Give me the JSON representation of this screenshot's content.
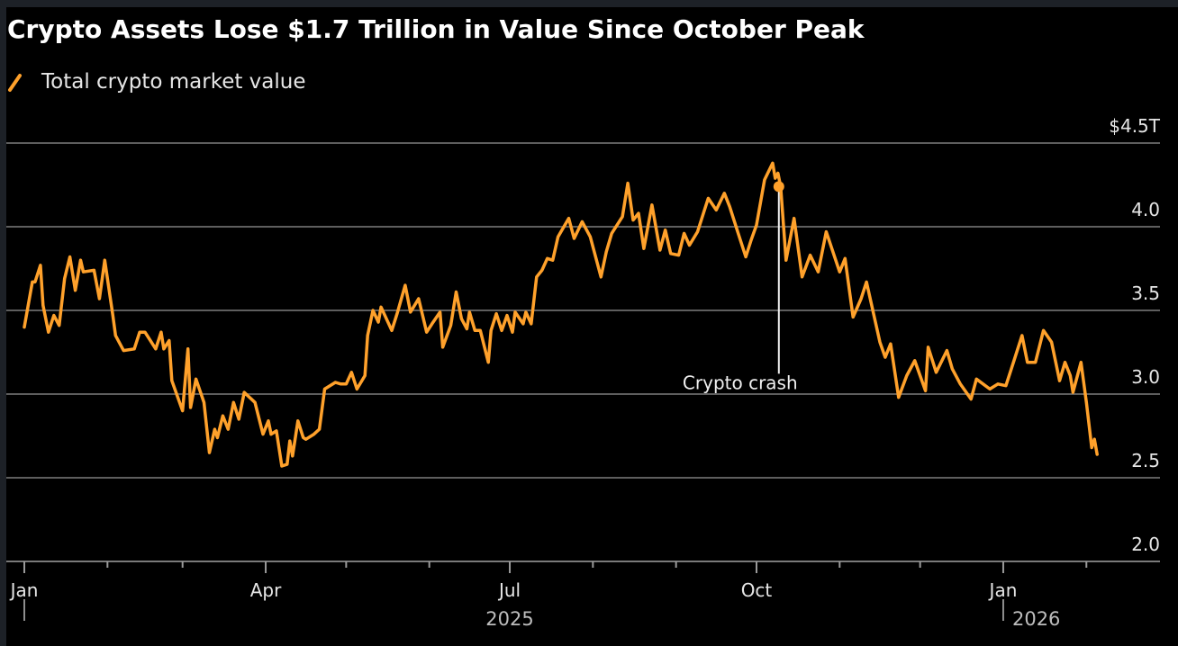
{
  "chart_data": {
    "type": "line",
    "title": "Crypto Assets Lose $1.7 Trillion in Value Since October Peak",
    "xlabel": "",
    "ylabel": "",
    "grid": true,
    "legend_placement": "top-left",
    "series_color": "#ffa12b",
    "ylim": [
      2.0,
      4.5
    ],
    "y_ticks": [
      {
        "value": 4.5,
        "label": "$4.5T"
      },
      {
        "value": 4.0,
        "label": "4.0"
      },
      {
        "value": 3.5,
        "label": "3.5"
      },
      {
        "value": 3.0,
        "label": "3.0"
      },
      {
        "value": 2.5,
        "label": "2.5"
      },
      {
        "value": 2.0,
        "label": "2.0"
      }
    ],
    "x_ticks": [
      {
        "date": "2025-01-01",
        "label": "Jan"
      },
      {
        "date": "2025-02-01",
        "label": ""
      },
      {
        "date": "2025-03-01",
        "label": ""
      },
      {
        "date": "2025-04-01",
        "label": "Apr"
      },
      {
        "date": "2025-05-01",
        "label": ""
      },
      {
        "date": "2025-06-01",
        "label": ""
      },
      {
        "date": "2025-07-01",
        "label": "Jul"
      },
      {
        "date": "2025-08-01",
        "label": ""
      },
      {
        "date": "2025-09-01",
        "label": ""
      },
      {
        "date": "2025-10-01",
        "label": "Oct"
      },
      {
        "date": "2025-11-01",
        "label": ""
      },
      {
        "date": "2025-12-01",
        "label": ""
      },
      {
        "date": "2026-01-01",
        "label": "Jan"
      },
      {
        "date": "2026-02-01",
        "label": ""
      }
    ],
    "year_labels": [
      {
        "date": "2025-07-01",
        "label": "2025"
      },
      {
        "date": "2026-01-01",
        "label": "2026"
      }
    ],
    "annotation": {
      "date": "2025-10-10",
      "value": 4.24,
      "label": "Crypto crash",
      "label_value": 3.1
    },
    "series": [
      {
        "name": "Total crypto market value",
        "points": [
          [
            "2025-01-01",
            3.4
          ],
          [
            "2025-01-04",
            3.67
          ],
          [
            "2025-01-05",
            3.67
          ],
          [
            "2025-01-07",
            3.77
          ],
          [
            "2025-01-08",
            3.53
          ],
          [
            "2025-01-10",
            3.37
          ],
          [
            "2025-01-12",
            3.47
          ],
          [
            "2025-01-14",
            3.41
          ],
          [
            "2025-01-16",
            3.69
          ],
          [
            "2025-01-18",
            3.82
          ],
          [
            "2025-01-20",
            3.62
          ],
          [
            "2025-01-22",
            3.8
          ],
          [
            "2025-01-23",
            3.73
          ],
          [
            "2025-01-27",
            3.74
          ],
          [
            "2025-01-29",
            3.57
          ],
          [
            "2025-01-31",
            3.8
          ],
          [
            "2025-02-03",
            3.47
          ],
          [
            "2025-02-04",
            3.35
          ],
          [
            "2025-02-07",
            3.26
          ],
          [
            "2025-02-11",
            3.27
          ],
          [
            "2025-02-13",
            3.37
          ],
          [
            "2025-02-15",
            3.37
          ],
          [
            "2025-02-19",
            3.27
          ],
          [
            "2025-02-21",
            3.37
          ],
          [
            "2025-02-22",
            3.27
          ],
          [
            "2025-02-24",
            3.32
          ],
          [
            "2025-02-25",
            3.08
          ],
          [
            "2025-03-01",
            2.9
          ],
          [
            "2025-03-03",
            3.27
          ],
          [
            "2025-03-04",
            2.92
          ],
          [
            "2025-03-06",
            3.09
          ],
          [
            "2025-03-09",
            2.95
          ],
          [
            "2025-03-11",
            2.65
          ],
          [
            "2025-03-13",
            2.79
          ],
          [
            "2025-03-14",
            2.74
          ],
          [
            "2025-03-16",
            2.87
          ],
          [
            "2025-03-18",
            2.79
          ],
          [
            "2025-03-20",
            2.95
          ],
          [
            "2025-03-22",
            2.85
          ],
          [
            "2025-03-24",
            3.01
          ],
          [
            "2025-03-28",
            2.95
          ],
          [
            "2025-03-31",
            2.76
          ],
          [
            "2025-04-02",
            2.84
          ],
          [
            "2025-04-03",
            2.76
          ],
          [
            "2025-04-05",
            2.78
          ],
          [
            "2025-04-07",
            2.57
          ],
          [
            "2025-04-09",
            2.58
          ],
          [
            "2025-04-10",
            2.72
          ],
          [
            "2025-04-11",
            2.63
          ],
          [
            "2025-04-13",
            2.84
          ],
          [
            "2025-04-15",
            2.74
          ],
          [
            "2025-04-16",
            2.73
          ],
          [
            "2025-04-19",
            2.76
          ],
          [
            "2025-04-21",
            2.79
          ],
          [
            "2025-04-23",
            3.03
          ],
          [
            "2025-04-27",
            3.07
          ],
          [
            "2025-04-29",
            3.06
          ],
          [
            "2025-05-01",
            3.06
          ],
          [
            "2025-05-03",
            3.13
          ],
          [
            "2025-05-05",
            3.03
          ],
          [
            "2025-05-08",
            3.11
          ],
          [
            "2025-05-09",
            3.35
          ],
          [
            "2025-05-11",
            3.5
          ],
          [
            "2025-05-13",
            3.43
          ],
          [
            "2025-05-14",
            3.52
          ],
          [
            "2025-05-18",
            3.38
          ],
          [
            "2025-05-20",
            3.48
          ],
          [
            "2025-05-23",
            3.65
          ],
          [
            "2025-05-25",
            3.49
          ],
          [
            "2025-05-28",
            3.57
          ],
          [
            "2025-05-31",
            3.37
          ],
          [
            "2025-06-02",
            3.42
          ],
          [
            "2025-06-05",
            3.49
          ],
          [
            "2025-06-06",
            3.28
          ],
          [
            "2025-06-09",
            3.41
          ],
          [
            "2025-06-11",
            3.61
          ],
          [
            "2025-06-13",
            3.45
          ],
          [
            "2025-06-15",
            3.39
          ],
          [
            "2025-06-16",
            3.49
          ],
          [
            "2025-06-18",
            3.38
          ],
          [
            "2025-06-20",
            3.38
          ],
          [
            "2025-06-23",
            3.19
          ],
          [
            "2025-06-24",
            3.38
          ],
          [
            "2025-06-26",
            3.48
          ],
          [
            "2025-06-28",
            3.38
          ],
          [
            "2025-06-30",
            3.47
          ],
          [
            "2025-07-02",
            3.37
          ],
          [
            "2025-07-03",
            3.49
          ],
          [
            "2025-07-06",
            3.42
          ],
          [
            "2025-07-07",
            3.49
          ],
          [
            "2025-07-09",
            3.42
          ],
          [
            "2025-07-11",
            3.7
          ],
          [
            "2025-07-13",
            3.74
          ],
          [
            "2025-07-15",
            3.81
          ],
          [
            "2025-07-17",
            3.8
          ],
          [
            "2025-07-19",
            3.94
          ],
          [
            "2025-07-23",
            4.05
          ],
          [
            "2025-07-25",
            3.93
          ],
          [
            "2025-07-28",
            4.03
          ],
          [
            "2025-07-31",
            3.94
          ],
          [
            "2025-08-04",
            3.7
          ],
          [
            "2025-08-06",
            3.85
          ],
          [
            "2025-08-08",
            3.96
          ],
          [
            "2025-08-12",
            4.06
          ],
          [
            "2025-08-14",
            4.26
          ],
          [
            "2025-08-16",
            4.04
          ],
          [
            "2025-08-18",
            4.08
          ],
          [
            "2025-08-20",
            3.87
          ],
          [
            "2025-08-23",
            4.13
          ],
          [
            "2025-08-26",
            3.86
          ],
          [
            "2025-08-28",
            3.98
          ],
          [
            "2025-08-30",
            3.84
          ],
          [
            "2025-09-02",
            3.83
          ],
          [
            "2025-09-04",
            3.96
          ],
          [
            "2025-09-06",
            3.89
          ],
          [
            "2025-09-09",
            3.97
          ],
          [
            "2025-09-13",
            4.17
          ],
          [
            "2025-09-16",
            4.1
          ],
          [
            "2025-09-19",
            4.2
          ],
          [
            "2025-09-21",
            4.12
          ],
          [
            "2025-09-24",
            3.97
          ],
          [
            "2025-09-27",
            3.82
          ],
          [
            "2025-09-29",
            3.92
          ],
          [
            "2025-10-01",
            4.01
          ],
          [
            "2025-10-04",
            4.28
          ],
          [
            "2025-10-07",
            4.38
          ],
          [
            "2025-10-08",
            4.29
          ],
          [
            "2025-10-09",
            4.32
          ],
          [
            "2025-10-10",
            4.24
          ],
          [
            "2025-10-12",
            3.8
          ],
          [
            "2025-10-15",
            4.05
          ],
          [
            "2025-10-18",
            3.7
          ],
          [
            "2025-10-21",
            3.83
          ],
          [
            "2025-10-24",
            3.73
          ],
          [
            "2025-10-27",
            3.97
          ],
          [
            "2025-11-01",
            3.73
          ],
          [
            "2025-11-03",
            3.81
          ],
          [
            "2025-11-06",
            3.46
          ],
          [
            "2025-11-09",
            3.57
          ],
          [
            "2025-11-11",
            3.67
          ],
          [
            "2025-11-16",
            3.31
          ],
          [
            "2025-11-18",
            3.22
          ],
          [
            "2025-11-20",
            3.3
          ],
          [
            "2025-11-23",
            2.98
          ],
          [
            "2025-11-26",
            3.11
          ],
          [
            "2025-11-29",
            3.2
          ],
          [
            "2025-12-03",
            3.02
          ],
          [
            "2025-12-04",
            3.28
          ],
          [
            "2025-12-07",
            3.13
          ],
          [
            "2025-12-11",
            3.26
          ],
          [
            "2025-12-13",
            3.15
          ],
          [
            "2025-12-16",
            3.06
          ],
          [
            "2025-12-20",
            2.97
          ],
          [
            "2025-12-22",
            3.09
          ],
          [
            "2025-12-27",
            3.03
          ],
          [
            "2025-12-30",
            3.06
          ],
          [
            "2026-01-02",
            3.05
          ],
          [
            "2026-01-05",
            3.2
          ],
          [
            "2026-01-08",
            3.35
          ],
          [
            "2026-01-10",
            3.19
          ],
          [
            "2026-01-13",
            3.19
          ],
          [
            "2026-01-16",
            3.38
          ],
          [
            "2026-01-19",
            3.31
          ],
          [
            "2026-01-22",
            3.08
          ],
          [
            "2026-01-24",
            3.19
          ],
          [
            "2026-01-26",
            3.11
          ],
          [
            "2026-01-27",
            3.01
          ],
          [
            "2026-01-30",
            3.19
          ],
          [
            "2026-02-01",
            2.95
          ],
          [
            "2026-02-03",
            2.68
          ],
          [
            "2026-02-04",
            2.73
          ],
          [
            "2026-02-05",
            2.64
          ]
        ]
      }
    ]
  }
}
